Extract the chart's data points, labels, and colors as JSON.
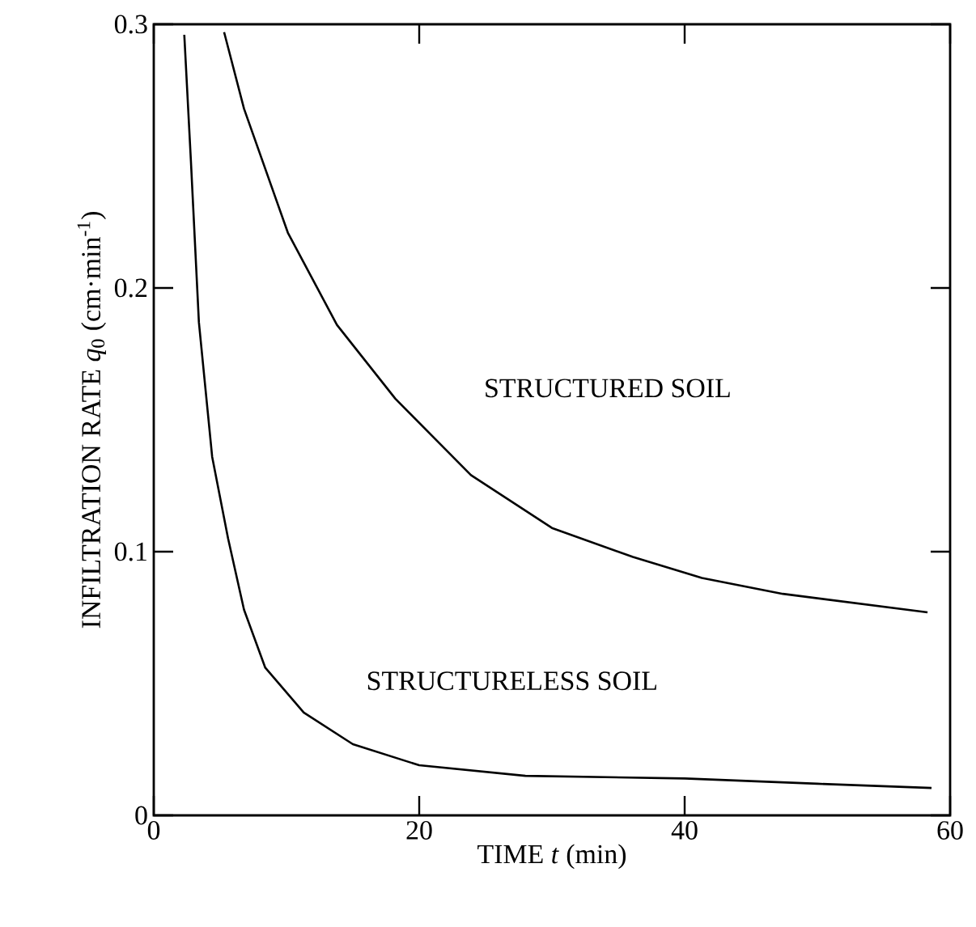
{
  "chart_data": {
    "type": "line",
    "xlabel": "TIME *t* (min)",
    "ylabel": "INFILTRATION RATE *q*$_{0}$ (cm·min$^{-1}$)",
    "xlim": [
      0,
      60
    ],
    "ylim": [
      0,
      0.3
    ],
    "xticks": [
      0,
      20,
      40,
      60
    ],
    "yticks": [
      0,
      0.1,
      0.2,
      0.3
    ],
    "grid": false,
    "legend": false,
    "marker": "none",
    "line_style": "solid",
    "series": [
      {
        "name": "STRUCTURED SOIL",
        "color": "#000000",
        "x": [
          5.3,
          6.8,
          10.1,
          13.8,
          18.2,
          23.9,
          30,
          36.1,
          41.3,
          47.4,
          58.3
        ],
        "values": [
          0.297,
          0.268,
          0.221,
          0.186,
          0.158,
          0.129,
          0.109,
          0.098,
          0.09,
          0.084,
          0.077
        ]
      },
      {
        "name": "STRUCTURELESS SOIL",
        "color": "#000000",
        "x": [
          2.3,
          2.8,
          3.4,
          4.4,
          5.6,
          6.8,
          8.4,
          11.3,
          15,
          20,
          28,
          40,
          50,
          58.6
        ],
        "values": [
          0.296,
          0.248,
          0.187,
          0.136,
          0.105,
          0.078,
          0.056,
          0.039,
          0.027,
          0.019,
          0.015,
          0.014,
          0.012,
          0.0104
        ]
      }
    ]
  }
}
